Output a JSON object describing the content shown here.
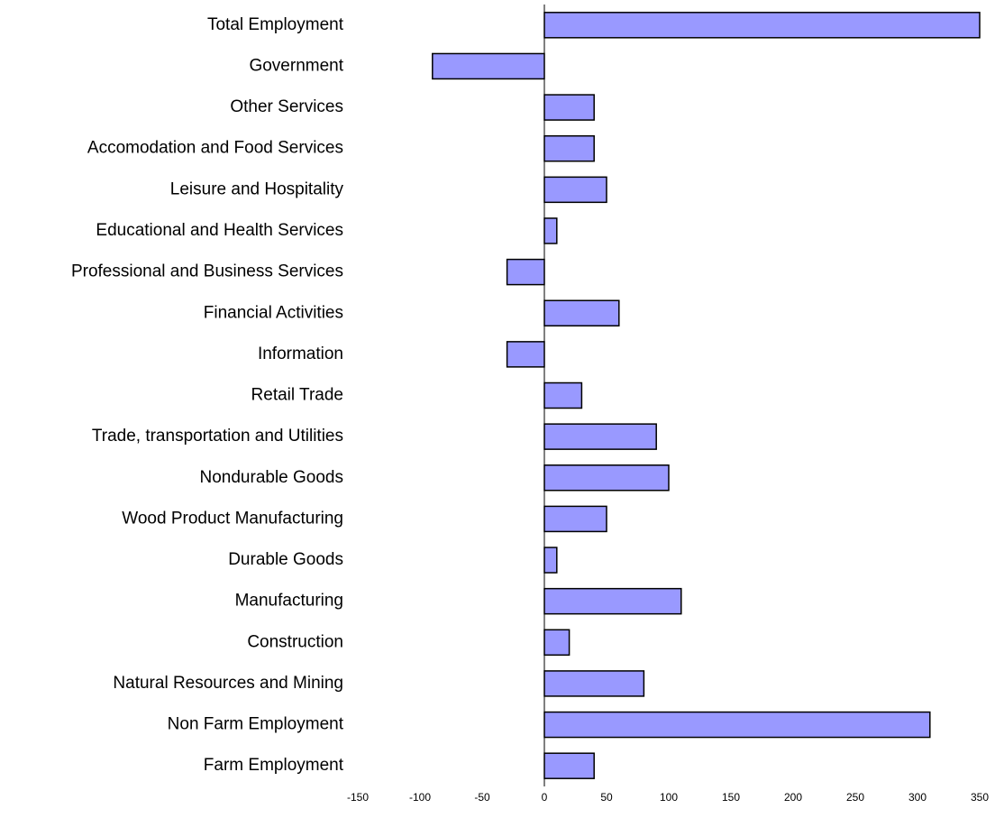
{
  "chart_data": {
    "type": "bar",
    "orientation": "horizontal",
    "categories": [
      "Total Employment",
      "Government",
      "Other Services",
      "Accomodation and Food Services",
      "Leisure and Hospitality",
      "Educational and Health Services",
      "Professional and Business Services",
      "Financial Activities",
      "Information",
      "Retail Trade",
      "Trade, transportation and Utilities",
      "Nondurable Goods",
      "Wood Product Manufacturing",
      "Durable Goods",
      "Manufacturing",
      "Construction",
      "Natural Resources and Mining",
      "Non Farm Employment",
      "Farm Employment"
    ],
    "values": [
      350,
      -90,
      40,
      40,
      50,
      10,
      -30,
      60,
      -30,
      30,
      90,
      100,
      50,
      10,
      110,
      20,
      80,
      310,
      40
    ],
    "color": "#9999ff",
    "xlim": [
      -150,
      350
    ],
    "xticks": [
      -150,
      -100,
      -50,
      0,
      50,
      100,
      150,
      200,
      250,
      300,
      350
    ],
    "grid": false
  }
}
